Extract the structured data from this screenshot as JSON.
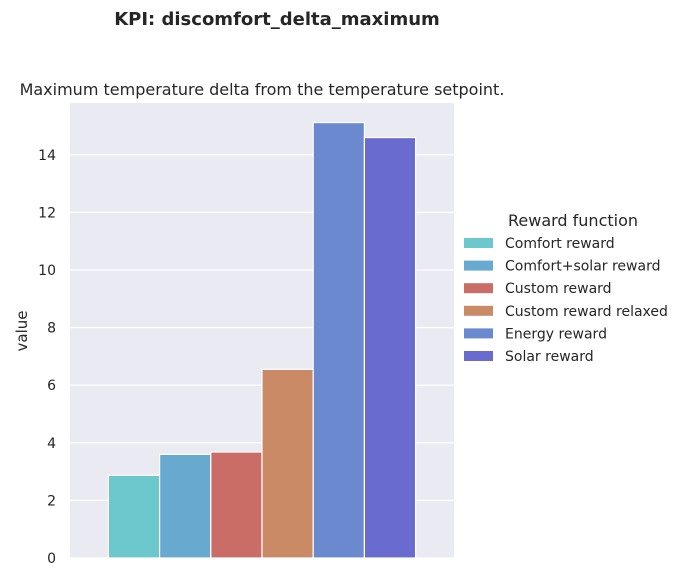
{
  "chart_data": {
    "type": "bar",
    "suptitle": "KPI: discomfort_delta_maximum",
    "title": "Maximum temperature delta from the temperature setpoint.",
    "xlabel": "",
    "ylabel": "value",
    "ylim": [
      0,
      15.8
    ],
    "yticks": [
      0,
      2,
      4,
      6,
      8,
      10,
      12,
      14
    ],
    "grid": true,
    "legend_title": "Reward function",
    "legend_position": "right",
    "series": [
      {
        "name": "Comfort reward",
        "value": 2.87,
        "color": "#6cc8cd"
      },
      {
        "name": "Comfort+solar reward",
        "value": 3.6,
        "color": "#67a9cf"
      },
      {
        "name": "Custom reward",
        "value": 3.68,
        "color": "#c96d66"
      },
      {
        "name": "Custom reward relaxed",
        "value": 6.55,
        "color": "#c98a65"
      },
      {
        "name": "Energy reward",
        "value": 15.12,
        "color": "#6a89cf"
      },
      {
        "name": "Solar reward",
        "value": 14.6,
        "color": "#696bcf"
      }
    ]
  }
}
